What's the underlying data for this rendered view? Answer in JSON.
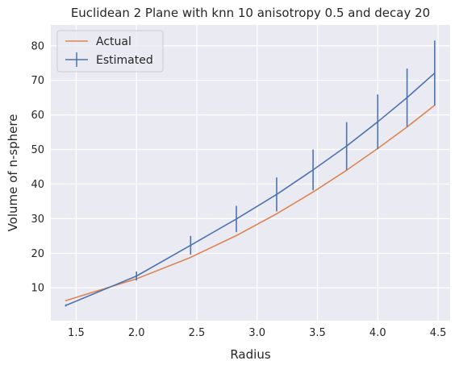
{
  "chart_data": {
    "type": "line",
    "title": "Euclidean 2 Plane with knn 10 anisotropy 0.5 and decay 20",
    "xlabel": "Radius",
    "ylabel": "Volume of n-sphere",
    "xlim": [
      1.29,
      4.6
    ],
    "ylim": [
      0.5,
      86
    ],
    "xticks": [
      1.5,
      2.0,
      2.5,
      3.0,
      3.5,
      4.0,
      4.5
    ],
    "xtick_labels": [
      "1.5",
      "2.0",
      "2.5",
      "3.0",
      "3.5",
      "4.0",
      "4.5"
    ],
    "yticks": [
      10,
      20,
      30,
      40,
      50,
      60,
      70,
      80
    ],
    "ytick_labels": [
      "10",
      "20",
      "30",
      "40",
      "50",
      "60",
      "70",
      "80"
    ],
    "grid": true,
    "legend_position": "top-left",
    "x": [
      1.414,
      2.0,
      2.449,
      2.828,
      3.162,
      3.464,
      3.742,
      4.0,
      4.243,
      4.472
    ],
    "series": [
      {
        "name": "Actual",
        "color": "#dd8452",
        "values": [
          6.3,
          12.6,
          18.8,
          25.1,
          31.4,
          37.7,
          44.0,
          50.3,
          56.5,
          62.8
        ]
      },
      {
        "name": "Estimated",
        "color": "#4c72b0",
        "values": [
          4.9,
          13.4,
          22.3,
          29.9,
          37.0,
          44.1,
          51.0,
          58.0,
          65.0,
          72.1
        ],
        "errors": [
          0.3,
          1.3,
          2.7,
          3.8,
          4.9,
          5.9,
          6.9,
          7.9,
          8.4,
          9.4
        ]
      }
    ]
  }
}
